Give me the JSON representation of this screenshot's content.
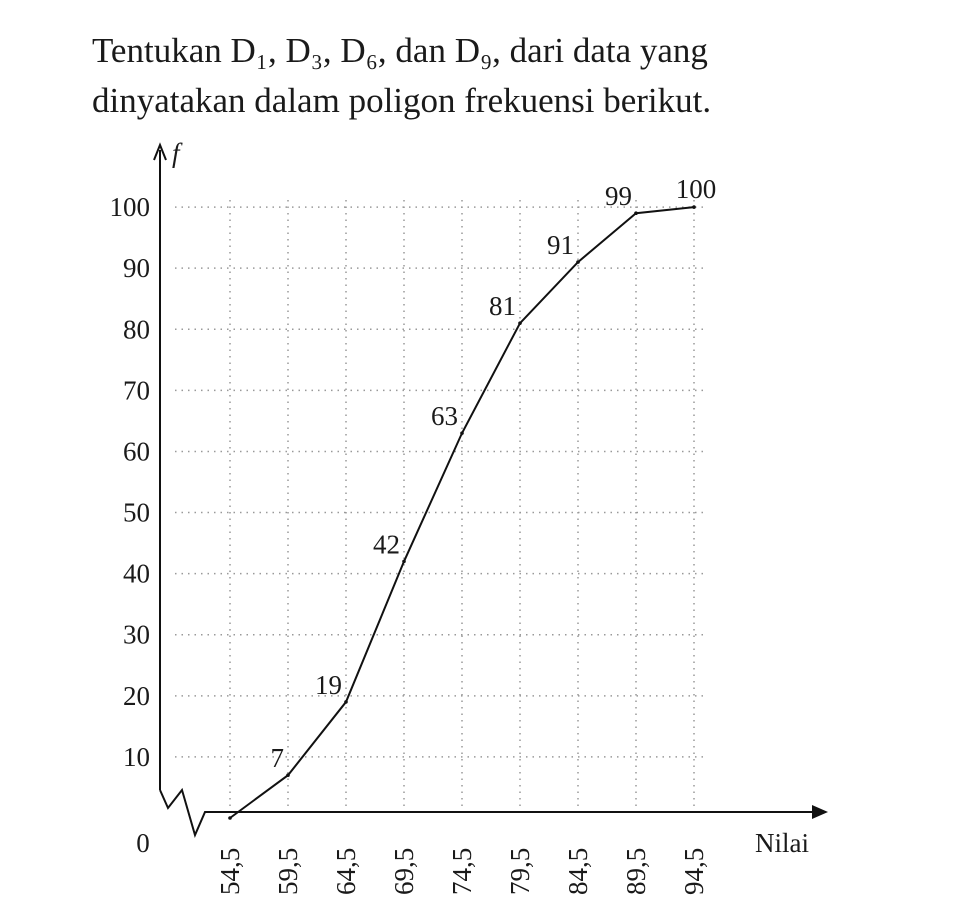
{
  "question": {
    "line1": "Tentukan D₁, D₃, D₆, dan D₉, dari data yang",
    "line2": "dinyatakan dalam poligon frekuensi berikut."
  },
  "chart_data": {
    "type": "line",
    "x_label": "Nilai",
    "y_label": "f",
    "categories": [
      "54,5",
      "59,5",
      "64,5",
      "69,5",
      "74,5",
      "79,5",
      "84,5",
      "89,5",
      "94,5"
    ],
    "values": [
      0,
      7,
      19,
      42,
      63,
      81,
      91,
      99,
      100
    ],
    "color": "#111111",
    "ylim": [
      0,
      110
    ],
    "yticks": [
      0,
      10,
      20,
      30,
      40,
      50,
      60,
      70,
      80,
      90,
      100
    ],
    "grid": true
  }
}
